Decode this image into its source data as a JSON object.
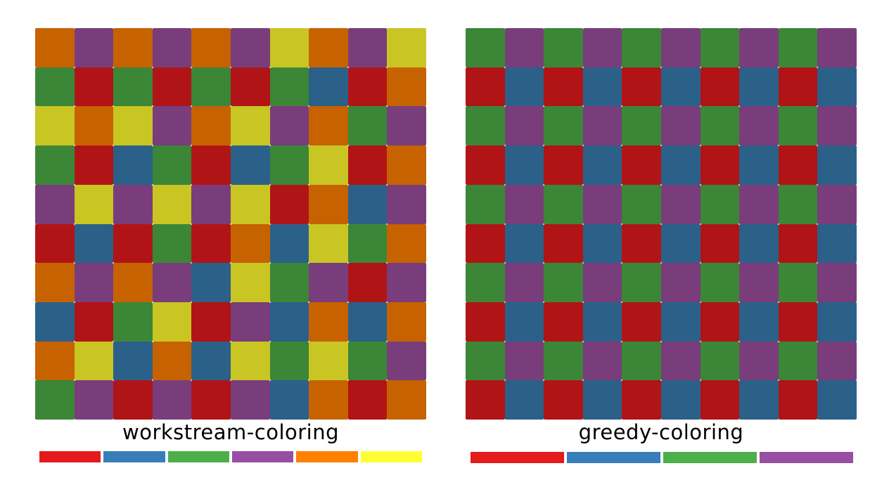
{
  "colors": {
    "R": "#b11416",
    "B": "#2b6088",
    "G": "#3c8637",
    "P": "#793d7b",
    "O": "#c76200",
    "Y": "#c9c523"
  },
  "panels": [
    {
      "title": "workstream-coloring",
      "grid": [
        "OPOPOPYOPY",
        "GRGRGRGBRO",
        "YOYPOYPOGP",
        "GRBGRBGYRO",
        "PYPYPYROBP",
        "RBRGROBYGO",
        "OPOPBYGPRP",
        "BRGYRPBOBO",
        "OYBOBYGYGP",
        "GPRPRPBORO"
      ],
      "legend": [
        "#e41a1c",
        "#377eb8",
        "#4daf4a",
        "#984ea3",
        "#ff7f00",
        "#ffff33"
      ]
    },
    {
      "title": "greedy-coloring",
      "grid": [
        "GPGPGPGPGP",
        "RBRBRBRBRB",
        "GPGPGPGPGP",
        "RBRBRBRBRB",
        "GPGPGPGPGP",
        "RBRBRBRBRB",
        "GPGPGPGPGP",
        "RBRBRBRBRB",
        "GPGPGPGPGP",
        "RBRBRBRBRB"
      ],
      "legend": [
        "#e41a1c",
        "#377eb8",
        "#4daf4a",
        "#984ea3"
      ]
    }
  ]
}
